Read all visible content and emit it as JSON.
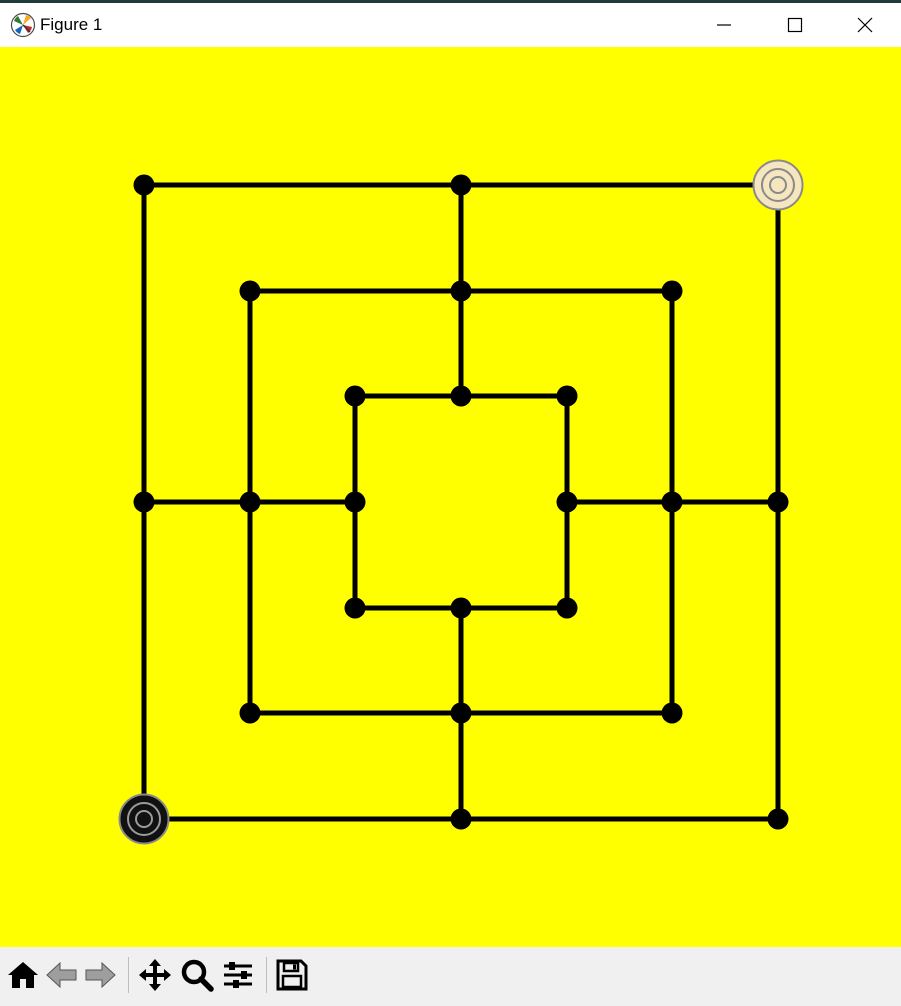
{
  "window": {
    "title": "Figure 1",
    "icon": "matplotlib-icon",
    "controls": [
      "minimize-icon",
      "maximize-icon",
      "close-icon"
    ]
  },
  "board": {
    "background_color": "#ffff00",
    "line_color": "#000000",
    "point_color": "#000000",
    "rings": 3,
    "points": [
      {
        "ring": 0,
        "pos": "top-left",
        "piece": "none"
      },
      {
        "ring": 0,
        "pos": "top-middle",
        "piece": "none"
      },
      {
        "ring": 0,
        "pos": "top-right",
        "piece": "white"
      },
      {
        "ring": 0,
        "pos": "middle-right",
        "piece": "none"
      },
      {
        "ring": 0,
        "pos": "bottom-right",
        "piece": "none"
      },
      {
        "ring": 0,
        "pos": "bottom-middle",
        "piece": "none"
      },
      {
        "ring": 0,
        "pos": "bottom-left",
        "piece": "black"
      },
      {
        "ring": 0,
        "pos": "middle-left",
        "piece": "none"
      },
      {
        "ring": 1,
        "pos": "top-left",
        "piece": "none"
      },
      {
        "ring": 1,
        "pos": "top-middle",
        "piece": "none"
      },
      {
        "ring": 1,
        "pos": "top-right",
        "piece": "none"
      },
      {
        "ring": 1,
        "pos": "middle-right",
        "piece": "none"
      },
      {
        "ring": 1,
        "pos": "bottom-right",
        "piece": "none"
      },
      {
        "ring": 1,
        "pos": "bottom-middle",
        "piece": "none"
      },
      {
        "ring": 1,
        "pos": "bottom-left",
        "piece": "none"
      },
      {
        "ring": 1,
        "pos": "middle-left",
        "piece": "none"
      },
      {
        "ring": 2,
        "pos": "top-left",
        "piece": "none"
      },
      {
        "ring": 2,
        "pos": "top-middle",
        "piece": "none"
      },
      {
        "ring": 2,
        "pos": "top-right",
        "piece": "none"
      },
      {
        "ring": 2,
        "pos": "middle-right",
        "piece": "none"
      },
      {
        "ring": 2,
        "pos": "bottom-right",
        "piece": "none"
      },
      {
        "ring": 2,
        "pos": "bottom-middle",
        "piece": "none"
      },
      {
        "ring": 2,
        "pos": "bottom-left",
        "piece": "none"
      },
      {
        "ring": 2,
        "pos": "middle-left",
        "piece": "none"
      }
    ],
    "piece_colors": {
      "white": {
        "fill": "#f5e6c0",
        "stroke": "#8a8a8a"
      },
      "black": {
        "fill": "#111111",
        "stroke": "#8a8a8a"
      }
    }
  },
  "toolbar": {
    "buttons": [
      "home-icon",
      "back-icon",
      "forward-icon",
      "pan-icon",
      "zoom-icon",
      "configure-subplots-icon",
      "save-icon"
    ]
  }
}
